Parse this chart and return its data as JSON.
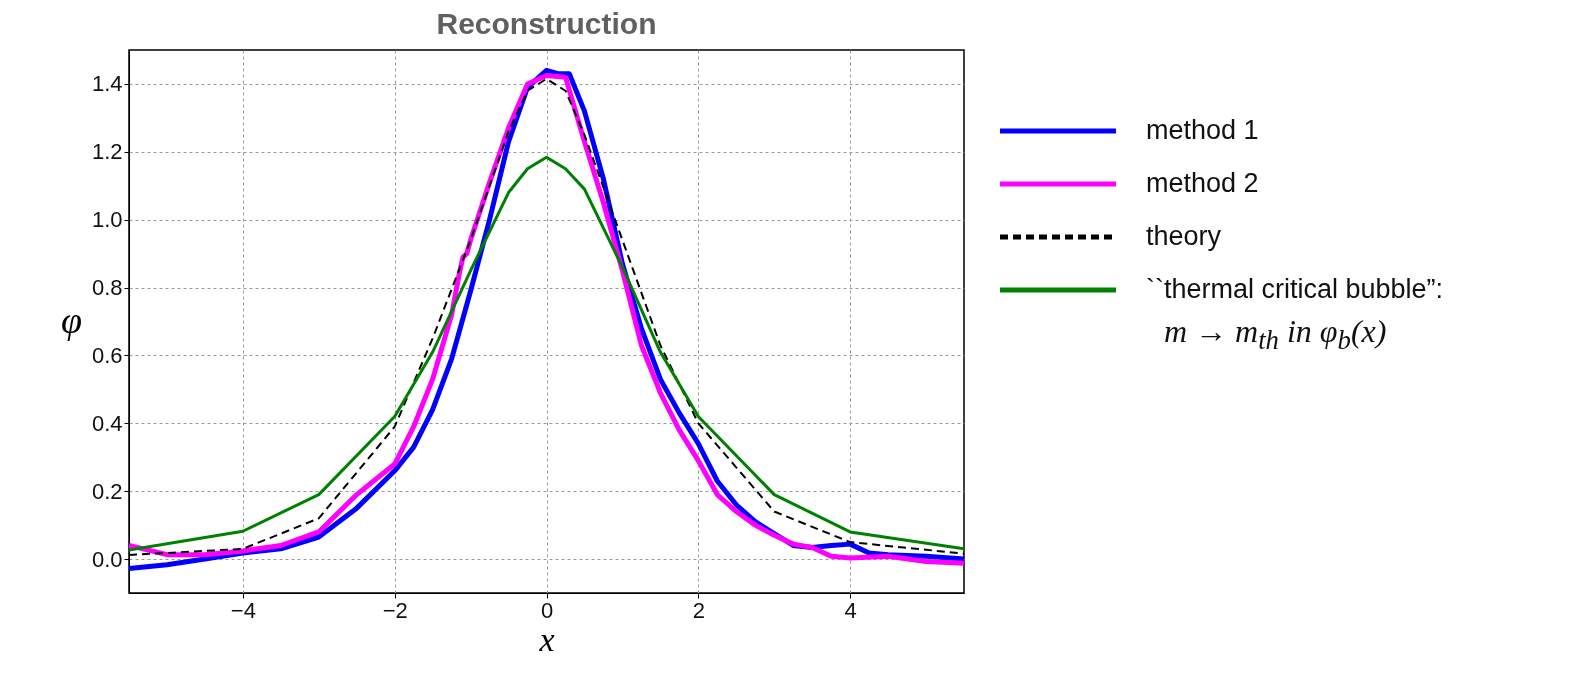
{
  "chart_data": {
    "type": "line",
    "title": "Reconstruction",
    "xlabel": "x",
    "ylabel": "φ",
    "xlim": [
      -5.5,
      5.5
    ],
    "xticks": [
      -4,
      -2,
      0,
      2,
      4
    ],
    "ylim": [
      -0.1,
      1.5
    ],
    "yticks": [
      {
        "value": 0,
        "label": "0.0"
      },
      0.2,
      0.4,
      0.6,
      0.8,
      {
        "value": 1,
        "label": "1.0"
      },
      1.2,
      1.4
    ],
    "grid": true,
    "legend": "right",
    "series": [
      {
        "name": "method 1",
        "color": "#0000ff",
        "line_style": "solid",
        "x": [
          -5.5,
          -5,
          -4.5,
          -4,
          -3.5,
          -3,
          -2.5,
          -2,
          -1.75,
          -1.5,
          -1.25,
          -1,
          -0.75,
          -0.5,
          -0.25,
          0,
          0.15,
          0.3,
          0.5,
          0.75,
          1,
          1.25,
          1.5,
          1.75,
          2,
          2.25,
          2.5,
          2.75,
          3,
          3.25,
          3.5,
          3.75,
          4,
          4.25,
          4.5,
          5,
          5.5
        ],
        "values": [
          -0.028,
          -0.017,
          0,
          0.018,
          0.03,
          0.065,
          0.15,
          0.26,
          0.33,
          0.44,
          0.59,
          0.79,
          1.0,
          1.23,
          1.39,
          1.44,
          1.43,
          1.43,
          1.32,
          1.12,
          0.87,
          0.68,
          0.53,
          0.43,
          0.34,
          0.23,
          0.16,
          0.11,
          0.075,
          0.04,
          0.034,
          0.04,
          0.044,
          0.018,
          0.013,
          0.008,
          0
        ]
      },
      {
        "name": "method 2",
        "color": "#ff00ff",
        "line_style": "solid",
        "x": [
          -5.5,
          -5,
          -4.5,
          -4,
          -3.5,
          -3,
          -2.5,
          -2,
          -1.75,
          -1.5,
          -1.25,
          -1.15,
          -1.1,
          -1.05,
          -1,
          -0.75,
          -0.5,
          -0.25,
          0,
          0.25,
          0.5,
          0.75,
          1,
          1.25,
          1.5,
          1.75,
          2,
          2.25,
          2.5,
          2.75,
          3,
          3.25,
          3.5,
          3.75,
          4,
          4.5,
          5,
          5.5
        ],
        "values": [
          0.04,
          0.013,
          0.013,
          0.024,
          0.04,
          0.08,
          0.19,
          0.28,
          0.39,
          0.53,
          0.72,
          0.84,
          0.89,
          0.9,
          0.94,
          1.11,
          1.27,
          1.4,
          1.425,
          1.42,
          1.23,
          1.05,
          0.85,
          0.63,
          0.49,
          0.38,
          0.29,
          0.19,
          0.14,
          0.1,
          0.07,
          0.044,
          0.034,
          0.008,
          0.003,
          0.008,
          -0.007,
          -0.012
        ]
      },
      {
        "name": "theory",
        "color": "#000000",
        "line_style": "dashed",
        "x": [
          -5.5,
          -4,
          -3,
          -2,
          -1.5,
          -1,
          -0.5,
          -0.25,
          0,
          0.25,
          0.5,
          1,
          1.5,
          2,
          3,
          4,
          5.5
        ],
        "values": [
          0.012,
          0.03,
          0.12,
          0.39,
          0.65,
          0.94,
          1.26,
          1.38,
          1.415,
          1.38,
          1.25,
          0.94,
          0.63,
          0.4,
          0.14,
          0.05,
          0.016
        ]
      },
      {
        "name": "``thermal critical bubble”:\nm → m$_{th}$  in  φ$_{b}$(x)",
        "color": "#008000",
        "line_style": "solid",
        "x": [
          -5.5,
          -4,
          -3,
          -2,
          -1.5,
          -1,
          -0.5,
          -0.25,
          0,
          0.25,
          0.5,
          1,
          1.5,
          2,
          3,
          4,
          5.5
        ],
        "values": [
          0.027,
          0.082,
          0.19,
          0.42,
          0.61,
          0.85,
          1.08,
          1.15,
          1.184,
          1.15,
          1.09,
          0.86,
          0.61,
          0.42,
          0.19,
          0.08,
          0.03
        ]
      }
    ]
  }
}
